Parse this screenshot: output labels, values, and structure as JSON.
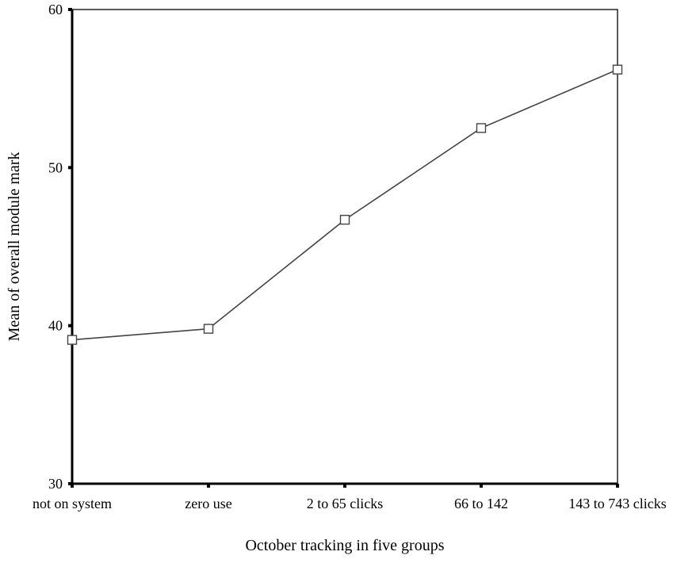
{
  "chart_data": {
    "type": "line",
    "title": "",
    "xlabel": "October tracking in five groups",
    "ylabel": "Mean of overall module mark",
    "categories": [
      "not on system",
      "zero use",
      "2 to 65 clicks",
      "66 to 142",
      "143 to 743 clicks"
    ],
    "series": [
      {
        "values": [
          39.1,
          39.8,
          46.7,
          52.5,
          56.2
        ]
      }
    ],
    "ylim": [
      30,
      60
    ],
    "yticks": [
      30,
      40,
      50,
      60
    ],
    "grid": false,
    "legend": "none",
    "marker": "open-square",
    "line_color": "#444444"
  }
}
